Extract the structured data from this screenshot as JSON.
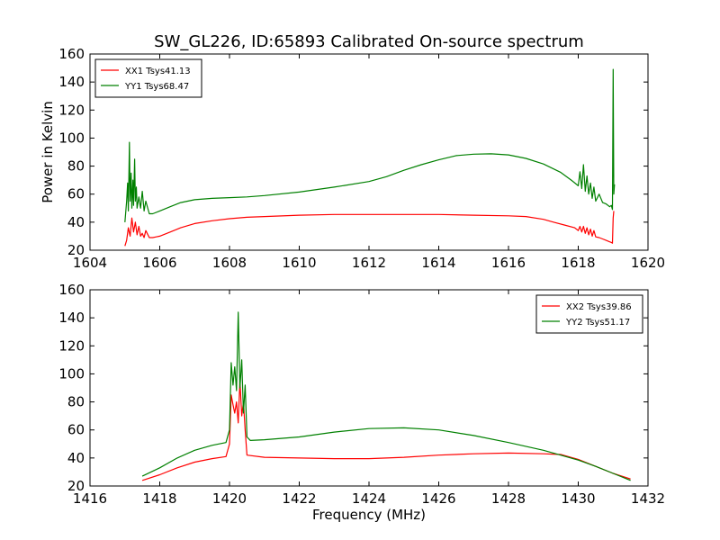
{
  "chart_data": [
    {
      "type": "line",
      "title": "SW_GL226, ID:65893 Calibrated On-source spectrum",
      "xlabel": "",
      "ylabel": "Power in Kelvin",
      "xlim": [
        1604,
        1620
      ],
      "ylim": [
        20,
        160
      ],
      "xticks": [
        1604,
        1606,
        1608,
        1610,
        1612,
        1614,
        1616,
        1618,
        1620
      ],
      "yticks": [
        20,
        40,
        60,
        80,
        100,
        120,
        140,
        160
      ],
      "grid": false,
      "legend_position": "top-left",
      "series": [
        {
          "name": "XX1 Tsys41.13",
          "color": "#ff0000",
          "x": [
            1605.0,
            1605.05,
            1605.1,
            1605.15,
            1605.2,
            1605.25,
            1605.3,
            1605.35,
            1605.4,
            1605.45,
            1605.5,
            1605.55,
            1605.6,
            1605.7,
            1605.8,
            1605.9,
            1606.0,
            1606.3,
            1606.6,
            1607.0,
            1607.5,
            1608.0,
            1608.5,
            1609.0,
            1610.0,
            1611.0,
            1612.0,
            1613.0,
            1614.0,
            1615.0,
            1616.0,
            1616.5,
            1617.0,
            1617.3,
            1617.6,
            1617.9,
            1618.0,
            1618.05,
            1618.1,
            1618.15,
            1618.2,
            1618.25,
            1618.3,
            1618.35,
            1618.4,
            1618.45,
            1618.5,
            1618.6,
            1618.7,
            1618.8,
            1618.9,
            1618.95,
            1618.98,
            1619.0,
            1619.02
          ],
          "y": [
            23,
            27,
            36,
            30,
            43,
            33,
            40,
            31,
            37,
            30,
            32,
            29,
            34,
            29,
            29,
            29.5,
            30,
            33,
            36,
            39,
            41,
            42.5,
            43.5,
            44,
            45,
            45.5,
            45.5,
            45.5,
            45.5,
            45,
            44.5,
            44,
            42,
            40,
            38,
            36,
            34,
            37,
            33,
            37,
            32,
            36,
            31,
            35,
            30,
            34,
            29.5,
            29,
            28,
            27,
            26,
            25.5,
            25,
            43,
            48
          ]
        },
        {
          "name": "YY1 Tsys68.47",
          "color": "#008000",
          "x": [
            1605.0,
            1605.05,
            1605.08,
            1605.1,
            1605.13,
            1605.15,
            1605.18,
            1605.2,
            1605.23,
            1605.25,
            1605.28,
            1605.3,
            1605.33,
            1605.35,
            1605.4,
            1605.45,
            1605.5,
            1605.55,
            1605.6,
            1605.7,
            1605.8,
            1606.0,
            1606.3,
            1606.6,
            1607.0,
            1607.5,
            1608.0,
            1608.5,
            1609.0,
            1610.0,
            1611.0,
            1612.0,
            1612.5,
            1613.0,
            1613.5,
            1614.0,
            1614.5,
            1615.0,
            1615.5,
            1616.0,
            1616.5,
            1617.0,
            1617.5,
            1617.8,
            1618.0,
            1618.05,
            1618.1,
            1618.15,
            1618.2,
            1618.25,
            1618.3,
            1618.35,
            1618.4,
            1618.45,
            1618.5,
            1618.6,
            1618.7,
            1618.8,
            1618.9,
            1618.95,
            1618.98,
            1619.0,
            1619.02,
            1619.04
          ],
          "y": [
            40,
            55,
            68,
            48,
            97,
            55,
            75,
            50,
            70,
            52,
            85,
            55,
            65,
            50,
            58,
            50,
            62,
            48,
            55,
            46,
            46,
            48,
            51,
            54,
            56,
            57,
            57.5,
            58,
            59,
            61.5,
            65,
            69,
            72.5,
            77,
            81,
            84.5,
            87.5,
            88.5,
            88.8,
            88,
            85.5,
            81.5,
            75.5,
            70,
            66,
            76,
            64,
            81,
            62,
            73,
            60,
            68,
            57,
            65,
            55,
            60,
            54,
            53,
            51,
            52,
            49,
            149,
            60,
            67
          ]
        }
      ]
    },
    {
      "type": "line",
      "title": "",
      "xlabel": "Frequency (MHz)",
      "ylabel": "",
      "xlim": [
        1416,
        1432
      ],
      "ylim": [
        20,
        160
      ],
      "xticks": [
        1416,
        1418,
        1420,
        1422,
        1424,
        1426,
        1428,
        1430,
        1432
      ],
      "yticks": [
        20,
        40,
        60,
        80,
        100,
        120,
        140,
        160
      ],
      "grid": false,
      "legend_position": "top-right",
      "series": [
        {
          "name": "XX2 Tsys39.86",
          "color": "#ff0000",
          "x": [
            1417.5,
            1418.0,
            1418.5,
            1419.0,
            1419.5,
            1419.9,
            1420.0,
            1420.05,
            1420.1,
            1420.15,
            1420.2,
            1420.25,
            1420.3,
            1420.35,
            1420.4,
            1420.45,
            1420.5,
            1421.0,
            1422.0,
            1423.0,
            1424.0,
            1425.0,
            1426.0,
            1427.0,
            1428.0,
            1429.0,
            1429.5,
            1430.0,
            1430.5,
            1431.0,
            1431.5
          ],
          "y": [
            24,
            28,
            33,
            37,
            39.5,
            41,
            50,
            85,
            78,
            72,
            80,
            65,
            95,
            70,
            80,
            60,
            42,
            40.5,
            40,
            39.5,
            39.5,
            40.5,
            42,
            43,
            43.5,
            43,
            42.5,
            39,
            34,
            29,
            25
          ]
        },
        {
          "name": "YY2 Tsys51.17",
          "color": "#008000",
          "x": [
            1417.5,
            1418.0,
            1418.5,
            1419.0,
            1419.5,
            1419.9,
            1420.0,
            1420.05,
            1420.1,
            1420.15,
            1420.2,
            1420.25,
            1420.3,
            1420.35,
            1420.4,
            1420.45,
            1420.5,
            1420.6,
            1421.0,
            1422.0,
            1423.0,
            1424.0,
            1425.0,
            1426.0,
            1427.0,
            1428.0,
            1429.0,
            1430.0,
            1430.5,
            1431.0,
            1431.5
          ],
          "y": [
            27,
            33,
            40,
            45.5,
            49,
            51,
            60,
            108,
            92,
            105,
            88,
            144,
            90,
            110,
            72,
            92,
            55,
            52.5,
            53,
            55,
            58.5,
            61,
            61.5,
            60,
            56,
            51,
            45.5,
            38.5,
            34,
            29,
            24
          ]
        }
      ]
    }
  ]
}
